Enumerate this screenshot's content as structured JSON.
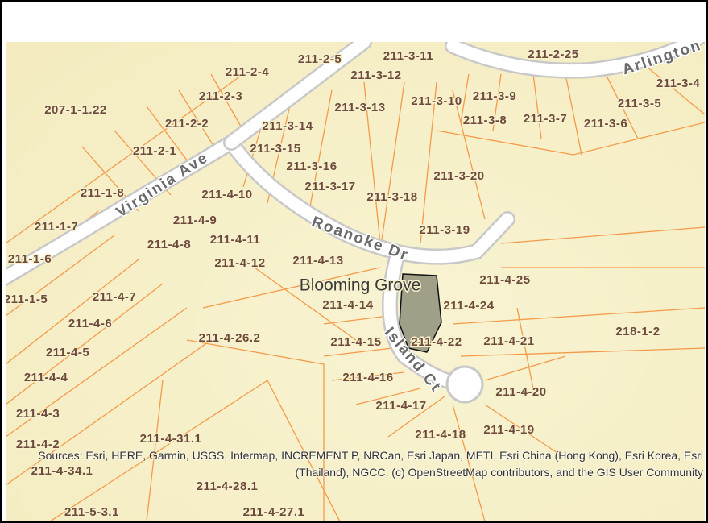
{
  "map": {
    "parcels": [
      "211-2-5",
      "211-3-11",
      "211-2-25",
      "211-2-4",
      "211-3-12",
      "211-3-4",
      "211-2-3",
      "211-3-9",
      "211-3-5",
      "207-1-1.22",
      "211-3-13",
      "211-3-10",
      "211-3-8",
      "211-3-7",
      "211-3-6",
      "211-2-2",
      "211-3-14",
      "211-2-1",
      "211-3-15",
      "211-3-16",
      "211-3-20",
      "211-1-8",
      "211-4-10",
      "211-3-17",
      "211-3-18",
      "211-4-9",
      "211-1-7",
      "211-3-19",
      "211-4-8",
      "211-4-11",
      "211-1-6",
      "211-4-12",
      "211-4-13",
      "211-4-25",
      "211-1-5",
      "211-4-7",
      "211-4-14",
      "211-4-24",
      "211-4-6",
      "218-1-2",
      "211-4-26.2",
      "211-4-15",
      "211-4-22",
      "211-4-21",
      "211-4-5",
      "211-4-4",
      "211-4-16",
      "211-4-20",
      "211-4-17",
      "211-4-3",
      "211-4-19",
      "211-4-18",
      "211-4-31.1",
      "211-4-2",
      "211-4-34.1",
      "211-4-28.1",
      "211-5-3.1",
      "211-4-27.1"
    ],
    "streets": [
      "Virginia Ave",
      "Roanoke Dr",
      "Arlington",
      "Island Ct"
    ],
    "place": "Blooming Grove",
    "attribution": "Sources: Esri, HERE, Garmin, USGS, Intermap, INCREMENT P, NRCan, Esri Japan, METI, Esri China (Hong Kong), Esri Korea, Esri (Thailand), NGCC, (c) OpenStreetMap contributors, and the GIS User Community"
  }
}
